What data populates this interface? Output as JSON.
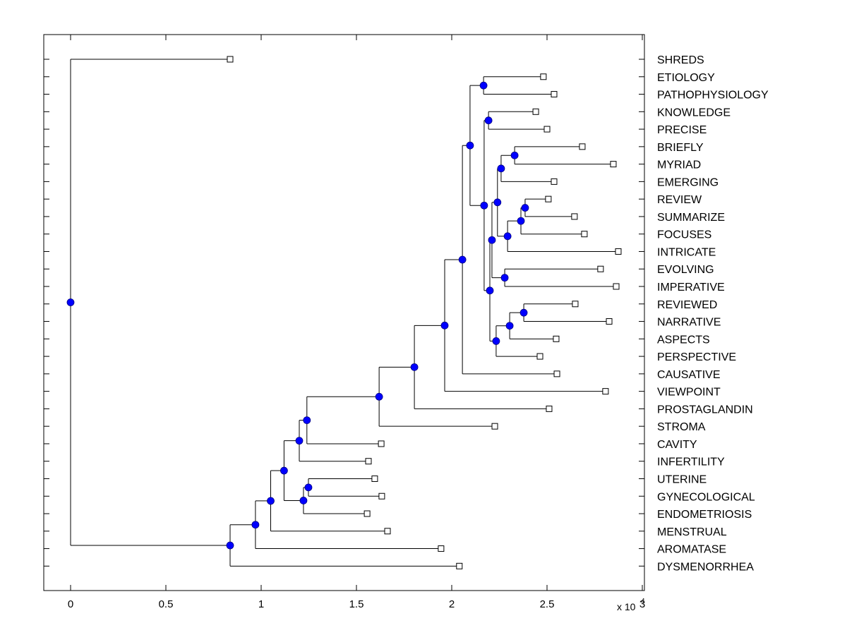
{
  "chart_data": {
    "type": "dendrogram",
    "title": "",
    "xlabel": "",
    "ylabel": "",
    "x_multiplier_label": {
      "base": "x 10",
      "exponent": "4"
    },
    "xlim": [
      -0.14,
      3.0
    ],
    "xticks": [
      0,
      0.5,
      1,
      1.5,
      2,
      2.5,
      3
    ],
    "xtick_labels": [
      "0",
      "0.5",
      "1",
      "1.5",
      "2",
      "2.5",
      "3"
    ],
    "grid": false,
    "node_color": "#0000ff",
    "leaf_marker_color": "#ffffff",
    "leaves": [
      {
        "name": "SHREDS",
        "x": 0.837
      },
      {
        "name": "ETIOLOGY",
        "x": 2.481
      },
      {
        "name": "PATHOPHYSIOLOGY",
        "x": 2.537
      },
      {
        "name": "KNOWLEDGE",
        "x": 2.441
      },
      {
        "name": "PRECISE",
        "x": 2.5
      },
      {
        "name": "BRIEFLY",
        "x": 2.685
      },
      {
        "name": "MYRIAD",
        "x": 2.848
      },
      {
        "name": "EMERGING",
        "x": 2.537
      },
      {
        "name": "REVIEW",
        "x": 2.507
      },
      {
        "name": "SUMMARIZE",
        "x": 2.644
      },
      {
        "name": "FOCUSES",
        "x": 2.696
      },
      {
        "name": "INTRICATE",
        "x": 2.874
      },
      {
        "name": "EVOLVING",
        "x": 2.781
      },
      {
        "name": "IMPERATIVE",
        "x": 2.863
      },
      {
        "name": "REVIEWED",
        "x": 2.648
      },
      {
        "name": "NARRATIVE",
        "x": 2.826
      },
      {
        "name": "ASPECTS",
        "x": 2.548
      },
      {
        "name": "PERSPECTIVE",
        "x": 2.463
      },
      {
        "name": "CAUSATIVE",
        "x": 2.552
      },
      {
        "name": "VIEWPOINT",
        "x": 2.807
      },
      {
        "name": "PROSTAGLANDIN",
        "x": 2.511
      },
      {
        "name": "STROMA",
        "x": 2.226
      },
      {
        "name": "CAVITY",
        "x": 1.63
      },
      {
        "name": "INFERTILITY",
        "x": 1.563
      },
      {
        "name": "UTERINE",
        "x": 1.596
      },
      {
        "name": "GYNECOLOGICAL",
        "x": 1.633
      },
      {
        "name": "ENDOMETRIOSIS",
        "x": 1.556
      },
      {
        "name": "MENSTRUAL",
        "x": 1.663
      },
      {
        "name": "AROMATASE",
        "x": 1.944
      },
      {
        "name": "DYSMENORRHEA",
        "x": 2.04
      }
    ],
    "tree": {
      "x": 0,
      "children": [
        {
          "leaf": "SHREDS"
        },
        {
          "x": 0.837,
          "children": [
            {
              "x": 0.97,
              "children": [
                {
                  "x": 1.05,
                  "children": [
                    {
                      "x": 1.12,
                      "children": [
                        {
                          "x": 1.2,
                          "children": [
                            {
                              "x": 1.24,
                              "children": [
                                {
                                  "x": 1.619,
                                  "children": [
                                    {
                                      "x": 1.804,
                                      "children": [
                                        {
                                          "x": 1.963,
                                          "children": [
                                            {
                                              "x": 2.056,
                                              "children": [
                                                {
                                                  "x": 2.096,
                                                  "children": [
                                                    {
                                                      "x": 2.167,
                                                      "children": [
                                                        {
                                                          "leaf": "ETIOLOGY"
                                                        },
                                                        {
                                                          "leaf": "PATHOPHYSIOLOGY"
                                                        }
                                                      ]
                                                    },
                                                    {
                                                      "x": 2.17,
                                                      "children": [
                                                        {
                                                          "x": 2.193,
                                                          "children": [
                                                            {
                                                              "leaf": "KNOWLEDGE"
                                                            },
                                                            {
                                                              "leaf": "PRECISE"
                                                            }
                                                          ]
                                                        },
                                                        {
                                                          "x": 2.2,
                                                          "children": [
                                                            {
                                                              "x": 2.211,
                                                              "children": [
                                                                {
                                                                  "x": 2.24,
                                                                  "children": [
                                                                    {
                                                                      "x": 2.259,
                                                                      "children": [
                                                                        {
                                                                          "x": 2.33,
                                                                          "children": [
                                                                            {
                                                                              "leaf": "BRIEFLY"
                                                                            },
                                                                            {
                                                                              "leaf": "MYRIAD"
                                                                            }
                                                                          ]
                                                                        },
                                                                        {
                                                                          "leaf": "EMERGING"
                                                                        }
                                                                      ]
                                                                    },
                                                                    {
                                                                      "x": 2.293,
                                                                      "children": [
                                                                        {
                                                                          "x": 2.363,
                                                                          "children": [
                                                                            {
                                                                              "x": 2.385,
                                                                              "children": [
                                                                                {
                                                                                  "leaf": "REVIEW"
                                                                                },
                                                                                {
                                                                                  "leaf": "SUMMARIZE"
                                                                                }
                                                                              ]
                                                                            },
                                                                            {
                                                                              "leaf": "FOCUSES"
                                                                            }
                                                                          ]
                                                                        },
                                                                        {
                                                                          "leaf": "INTRICATE"
                                                                        }
                                                                      ]
                                                                    }
                                                                  ]
                                                                },
                                                                {
                                                                  "x": 2.278,
                                                                  "children": [
                                                                    {
                                                                      "leaf": "EVOLVING"
                                                                    },
                                                                    {
                                                                      "leaf": "IMPERATIVE"
                                                                    }
                                                                  ]
                                                                }
                                                              ]
                                                            },
                                                            {
                                                              "x": 2.233,
                                                              "children": [
                                                                {
                                                                  "x": 2.304,
                                                                  "children": [
                                                                    {
                                                                      "x": 2.378,
                                                                      "children": [
                                                                        {
                                                                          "leaf": "REVIEWED"
                                                                        },
                                                                        {
                                                                          "leaf": "NARRATIVE"
                                                                        }
                                                                      ]
                                                                    },
                                                                    {
                                                                      "leaf": "ASPECTS"
                                                                    }
                                                                  ]
                                                                },
                                                                {
                                                                  "leaf": "PERSPECTIVE"
                                                                }
                                                              ]
                                                            }
                                                          ]
                                                        }
                                                      ]
                                                    }
                                                  ]
                                                },
                                                {
                                                  "leaf": "CAUSATIVE"
                                                }
                                              ]
                                            },
                                            {
                                              "leaf": "VIEWPOINT"
                                            }
                                          ]
                                        },
                                        {
                                          "leaf": "PROSTAGLANDIN"
                                        }
                                      ]
                                    },
                                    {
                                      "leaf": "STROMA"
                                    }
                                  ]
                                },
                                {
                                  "leaf": "CAVITY"
                                }
                              ]
                            },
                            {
                              "leaf": "INFERTILITY"
                            }
                          ]
                        },
                        {
                          "x": 1.222,
                          "children": [
                            {
                              "x": 1.248,
                              "children": [
                                {
                                  "leaf": "UTERINE"
                                },
                                {
                                  "leaf": "GYNECOLOGICAL"
                                }
                              ]
                            },
                            {
                              "leaf": "ENDOMETRIOSIS"
                            }
                          ]
                        }
                      ]
                    },
                    {
                      "leaf": "MENSTRUAL"
                    }
                  ]
                },
                {
                  "leaf": "AROMATASE"
                }
              ]
            },
            {
              "leaf": "DYSMENORRHEA"
            }
          ]
        }
      ]
    }
  }
}
